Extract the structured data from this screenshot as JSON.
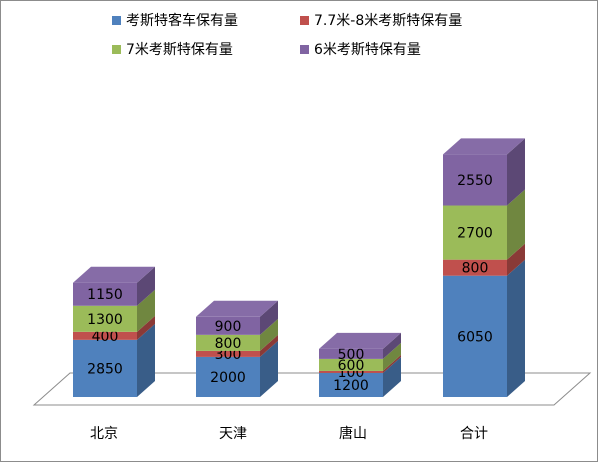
{
  "chart_data": {
    "type": "bar",
    "stacked": true,
    "three_d": true,
    "categories": [
      "北京",
      "天津",
      "唐山",
      "合计"
    ],
    "series": [
      {
        "name": "考斯特客车保有量",
        "values": [
          2850,
          2000,
          1200,
          6050
        ],
        "color": "#4F81BD"
      },
      {
        "name": "7.7米-8米考斯特保有量",
        "values": [
          400,
          300,
          100,
          800
        ],
        "color": "#C0504D"
      },
      {
        "name": "7米考斯特保有量",
        "values": [
          1300,
          800,
          600,
          2700
        ],
        "color": "#9BBB59"
      },
      {
        "name": "6米考斯特保有量",
        "values": [
          1150,
          900,
          500,
          2550
        ],
        "color": "#8064A2"
      }
    ],
    "legend_position": "top",
    "grid": false,
    "title": "",
    "xlabel": "",
    "ylabel": ""
  }
}
